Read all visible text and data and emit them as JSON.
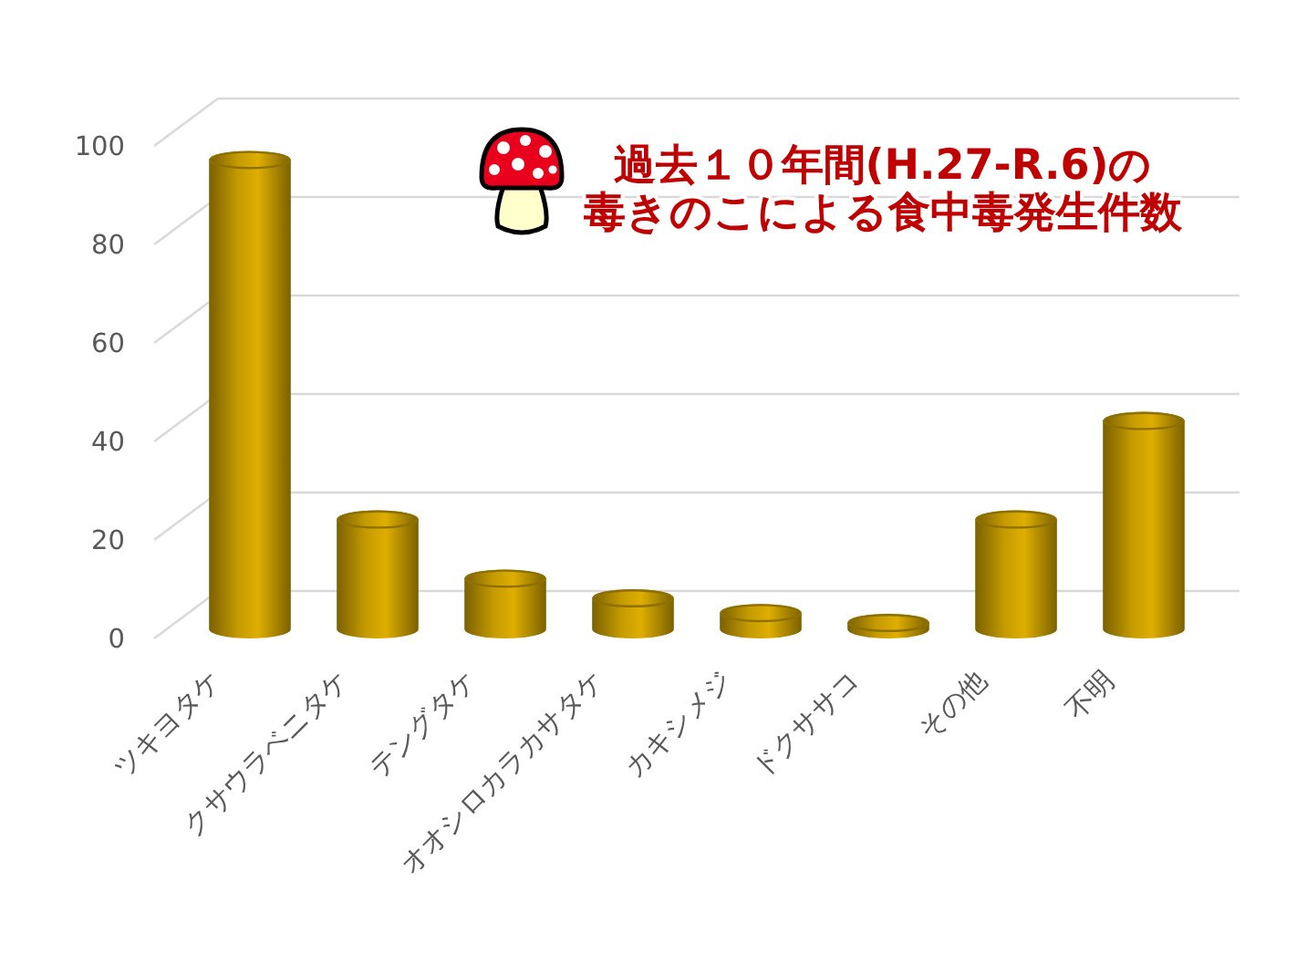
{
  "chart_data": {
    "type": "bar",
    "title": "過去１０年間(H.27-R.6)の毒きのこによる食中毒発生件数",
    "categories": [
      "ツキヨタケ",
      "クサウラベニタケ",
      "テングタケ",
      "オオシロカラカサタケ",
      "カキシメジ",
      "ドクササコ",
      "その他",
      "不明"
    ],
    "values": [
      99,
      26,
      14,
      10,
      7,
      5,
      26,
      46
    ],
    "color": "#c49a00",
    "ylim": [
      0,
      100
    ],
    "yticks": [
      0,
      20,
      40,
      60,
      80,
      100
    ],
    "grid": "y"
  }
}
